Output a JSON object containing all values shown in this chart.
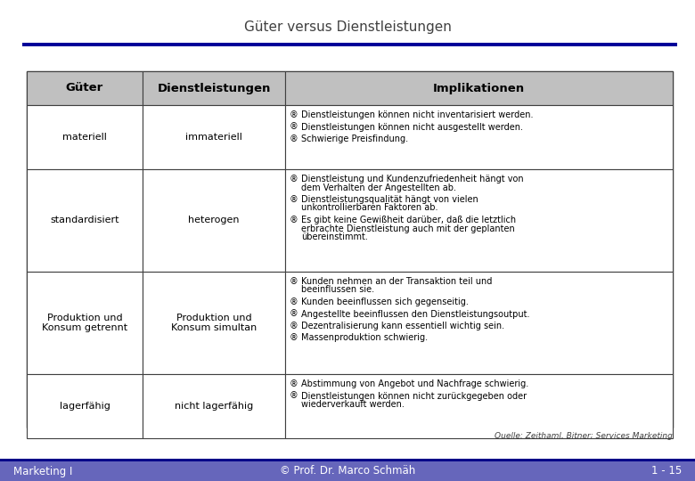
{
  "title": "Güter versus Dienstleistungen",
  "title_color": "#404040",
  "header_bg": "#C0C0C0",
  "header_text_color": "#000000",
  "cell_bg": "#FFFFFF",
  "border_color": "#404040",
  "blue_bar_color": "#0000AA",
  "footer_bar_color": "#4040C0",
  "footer_bg": "#6666BB",
  "footer_text_color": "#FFFFFF",
  "source_text": "Quelle: Zeithaml, Bitner; Services Marketing",
  "footer_left": "Marketing I",
  "footer_center": "© Prof. Dr. Marco Schmäh",
  "footer_right": "1 - 15",
  "col1_header": "Güter",
  "col2_header": "Dienstleistungen",
  "col3_header": "Implikationen",
  "rows": [
    {
      "col1": "materiell",
      "col2": "immateriell",
      "col3_items": [
        "Dienstleistungen können nicht inventarisiert werden.",
        "Dienstleistungen können nicht ausgestellt werden.",
        "Schwierige Preisfindung."
      ]
    },
    {
      "col1": "standardisiert",
      "col2": "heterogen",
      "col3_items": [
        "Dienstleistung und Kundenzufriedenheit hängt von\ndem Verhalten der Angestellten ab.",
        "Dienstleistungsqualität hängt von vielen\nunkontrollierbaren Faktoren ab.",
        "Es gibt keine Gewißheit darüber, daß die letztlich\nerbrachte Dienstleistung auch mit der geplanten\nübereinstimmt."
      ]
    },
    {
      "col1": "Produktion und\nKonsum getrennt",
      "col2": "Produktion und\nKonsum simultan",
      "col3_items": [
        "Kunden nehmen an der Transaktion teil und\nbeeinflussen sie.",
        "Kunden beeinflussen sich gegenseitig.",
        "Angestellte beeinflussen den Dienstleistungsoutput.",
        "Dezentralisierung kann essentiell wichtig sein.",
        "Massenproduktion schwierig."
      ]
    },
    {
      "col1": "lagerfähig",
      "col2": "nicht lagerfähig",
      "col3_items": [
        "Abstimmung von Angebot und Nachfrage schwierig.",
        "Dienstleistungen können nicht zurückgegeben oder\nwiederverkauft werden."
      ]
    }
  ]
}
